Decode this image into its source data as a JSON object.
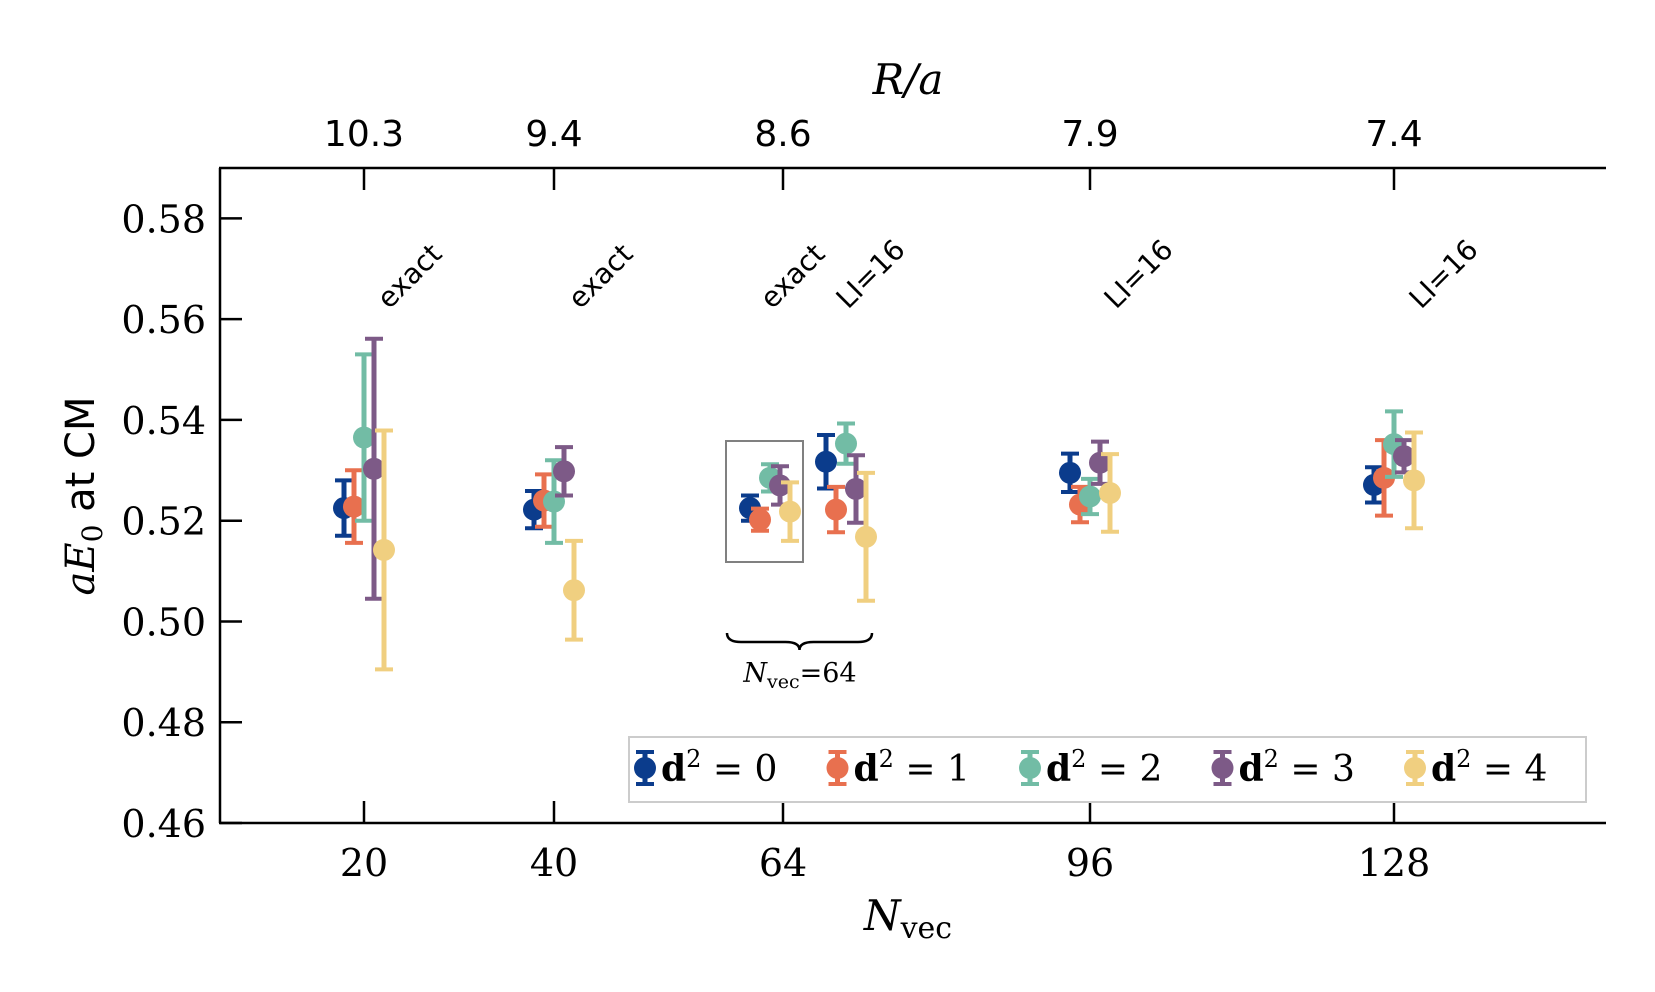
{
  "chart_data": {
    "type": "scatter",
    "title": "",
    "xlabel": {
      "base": "N",
      "sub": "vec"
    },
    "ylabel": {
      "base": "aE",
      "sub": "0",
      "suffix": " at CM"
    },
    "top_xlabel": "R/a",
    "ylim": [
      0.46,
      0.59
    ],
    "yticks": [
      "0.46",
      "0.48",
      "0.50",
      "0.52",
      "0.54",
      "0.56",
      "0.58"
    ],
    "x_groups": [
      {
        "key": "20",
        "label": "20",
        "top_label": "10.3"
      },
      {
        "key": "40",
        "label": "40",
        "top_label": "9.4"
      },
      {
        "key": "64",
        "label": "64",
        "top_label": "8.6"
      },
      {
        "key": "96",
        "label": "96",
        "top_label": "7.9"
      },
      {
        "key": "128",
        "label": "128",
        "top_label": "7.4"
      }
    ],
    "annotations": [
      {
        "text": "exact",
        "group": "20"
      },
      {
        "text": "exact",
        "group": "40"
      },
      {
        "text": "exact",
        "group": "64a"
      },
      {
        "text": "LI=16",
        "group": "64b"
      },
      {
        "text": "LI=16",
        "group": "96"
      },
      {
        "text": "LI=16",
        "group": "128"
      }
    ],
    "brace_label": {
      "base": "N",
      "sub": "vec",
      "suffix": "=64"
    },
    "legend": {
      "position": "lower-right",
      "prefix": "d",
      "sup": "2"
    },
    "series": [
      {
        "name": "d²=0",
        "d2": "0",
        "color": "#0b3c8c",
        "points": [
          {
            "group": "20",
            "y": 0.5225,
            "err": 0.0055
          },
          {
            "group": "40",
            "y": 0.5222,
            "err": 0.0037
          },
          {
            "group": "64a",
            "y": 0.5225,
            "err": 0.0025
          },
          {
            "group": "64b",
            "y": 0.5317,
            "err": 0.0053
          },
          {
            "group": "96",
            "y": 0.5295,
            "err": 0.0038
          },
          {
            "group": "128",
            "y": 0.5271,
            "err": 0.0035
          }
        ]
      },
      {
        "name": "d²=1",
        "d2": "1",
        "color": "#e8704f",
        "points": [
          {
            "group": "20",
            "y": 0.5228,
            "err": 0.0072
          },
          {
            "group": "40",
            "y": 0.524,
            "err": 0.0052
          },
          {
            "group": "64a",
            "y": 0.5202,
            "err": 0.0022
          },
          {
            "group": "64b",
            "y": 0.5222,
            "err": 0.0045
          },
          {
            "group": "96",
            "y": 0.5232,
            "err": 0.0035
          },
          {
            "group": "128",
            "y": 0.5285,
            "err": 0.0075
          }
        ]
      },
      {
        "name": "d²=2",
        "d2": "2",
        "color": "#72bca5",
        "points": [
          {
            "group": "20",
            "y": 0.5365,
            "err": 0.0165
          },
          {
            "group": "40",
            "y": 0.5238,
            "err": 0.0082
          },
          {
            "group": "64a",
            "y": 0.5285,
            "err": 0.0027
          },
          {
            "group": "64b",
            "y": 0.5353,
            "err": 0.004
          },
          {
            "group": "96",
            "y": 0.5248,
            "err": 0.0035
          },
          {
            "group": "128",
            "y": 0.5352,
            "err": 0.0065
          }
        ]
      },
      {
        "name": "d²=3",
        "d2": "3",
        "color": "#7d5a87",
        "points": [
          {
            "group": "20",
            "y": 0.5303,
            "err": 0.0258
          },
          {
            "group": "40",
            "y": 0.5298,
            "err": 0.0048
          },
          {
            "group": "64a",
            "y": 0.527,
            "err": 0.0038
          },
          {
            "group": "64b",
            "y": 0.5263,
            "err": 0.0067
          },
          {
            "group": "96",
            "y": 0.5315,
            "err": 0.0042
          },
          {
            "group": "128",
            "y": 0.5328,
            "err": 0.0032
          }
        ]
      },
      {
        "name": "d²=4",
        "d2": "4",
        "color": "#f0cf80",
        "points": [
          {
            "group": "20",
            "y": 0.5142,
            "err": 0.0237
          },
          {
            "group": "40",
            "y": 0.5062,
            "err": 0.0098
          },
          {
            "group": "64a",
            "y": 0.5218,
            "err": 0.0058
          },
          {
            "group": "64b",
            "y": 0.5168,
            "err": 0.0127
          },
          {
            "group": "96",
            "y": 0.5255,
            "err": 0.0077
          },
          {
            "group": "128",
            "y": 0.528,
            "err": 0.0095
          }
        ]
      }
    ]
  }
}
